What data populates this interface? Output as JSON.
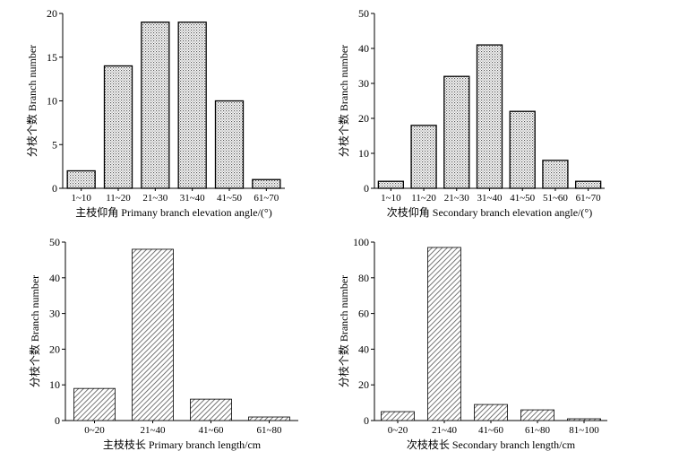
{
  "chart_data": [
    {
      "type": "bar",
      "categories": [
        "1~10",
        "11~20",
        "21~30",
        "31~40",
        "41~50",
        "61~70"
      ],
      "values": [
        2,
        14,
        19,
        19,
        10,
        1
      ],
      "xlabel": "主枝仰角 Primany branch elevation angle/(°)",
      "ylabel": "分枝个数 Branch number",
      "ylim": [
        0,
        20
      ],
      "yticks": [
        0,
        5,
        10,
        15,
        20
      ],
      "pattern": "dots"
    },
    {
      "type": "bar",
      "categories": [
        "1~10",
        "11~20",
        "21~30",
        "31~40",
        "41~50",
        "51~60",
        "61~70"
      ],
      "values": [
        2,
        18,
        32,
        41,
        22,
        8,
        2
      ],
      "xlabel": "次枝仰角 Secondary branch elevation angle/(°)",
      "ylabel": "分枝个数 Branch number",
      "ylim": [
        0,
        50
      ],
      "yticks": [
        0,
        10,
        20,
        30,
        40,
        50
      ],
      "pattern": "dots"
    },
    {
      "type": "bar",
      "categories": [
        "0~20",
        "21~40",
        "41~60",
        "61~80"
      ],
      "values": [
        9,
        48,
        6,
        1
      ],
      "xlabel": "主枝枝长 Primary branch length/cm",
      "ylabel": "分枝个数 Branch number",
      "ylim": [
        0,
        50
      ],
      "yticks": [
        0,
        10,
        20,
        30,
        40,
        50
      ],
      "pattern": "hatch"
    },
    {
      "type": "bar",
      "categories": [
        "0~20",
        "21~40",
        "41~60",
        "61~80",
        "81~100"
      ],
      "values": [
        5,
        97,
        9,
        6,
        1
      ],
      "xlabel": "次枝枝长 Secondary branch length/cm",
      "ylabel": "分枝个数 Branch number",
      "ylim": [
        0,
        100
      ],
      "yticks": [
        0,
        20,
        40,
        60,
        80,
        100
      ],
      "pattern": "hatch"
    }
  ]
}
